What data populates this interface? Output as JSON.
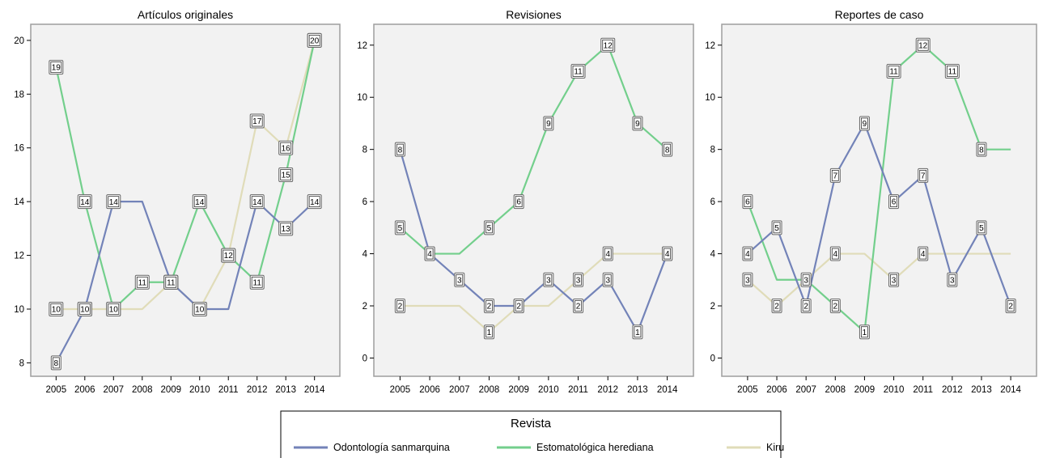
{
  "chart_data": [
    {
      "type": "line",
      "title": "Artículos originales",
      "categories": [
        "2005",
        "2006",
        "2007",
        "2008",
        "2009",
        "2010",
        "2011",
        "2012",
        "2013",
        "2014"
      ],
      "ylim": [
        7.5,
        20.6
      ],
      "yticks": [
        8,
        10,
        12,
        14,
        16,
        18,
        20
      ],
      "series": [
        {
          "name": "Odontología sanmarquina",
          "values": [
            8,
            10,
            14,
            14,
            11,
            10,
            10,
            14,
            13,
            14
          ],
          "labeled": [
            true,
            true,
            true,
            false,
            true,
            true,
            false,
            true,
            true,
            true
          ]
        },
        {
          "name": "Estomatológica herediana",
          "values": [
            19,
            14,
            10,
            11,
            11,
            14,
            12,
            11,
            15,
            20
          ],
          "labeled": [
            true,
            true,
            true,
            true,
            true,
            true,
            true,
            true,
            true,
            true
          ]
        },
        {
          "name": "Kiru",
          "values": [
            10,
            10,
            10,
            10,
            11,
            10,
            12,
            17,
            16,
            20
          ],
          "labeled": [
            true,
            true,
            true,
            false,
            true,
            true,
            true,
            true,
            true,
            true
          ]
        }
      ]
    },
    {
      "type": "line",
      "title": "Revisiones",
      "categories": [
        "2005",
        "2006",
        "2007",
        "2008",
        "2009",
        "2010",
        "2011",
        "2012",
        "2013",
        "2014"
      ],
      "ylim": [
        -0.7,
        12.8
      ],
      "yticks": [
        0,
        2,
        4,
        6,
        8,
        10,
        12
      ],
      "series": [
        {
          "name": "Odontología sanmarquina",
          "values": [
            8,
            4,
            3,
            2,
            2,
            3,
            2,
            3,
            1,
            4
          ],
          "labeled": [
            true,
            true,
            true,
            true,
            true,
            true,
            true,
            true,
            true,
            true
          ]
        },
        {
          "name": "Estomatológica herediana",
          "values": [
            5,
            4,
            4,
            5,
            6,
            9,
            11,
            12,
            9,
            8
          ],
          "labeled": [
            true,
            true,
            false,
            true,
            true,
            true,
            true,
            true,
            true,
            true
          ]
        },
        {
          "name": "Kiru",
          "values": [
            2,
            2,
            2,
            1,
            2,
            2,
            3,
            4,
            4,
            4
          ],
          "labeled": [
            true,
            false,
            false,
            true,
            true,
            false,
            true,
            true,
            false,
            true
          ]
        }
      ]
    },
    {
      "type": "line",
      "title": "Reportes de caso",
      "categories": [
        "2005",
        "2006",
        "2007",
        "2008",
        "2009",
        "2010",
        "2011",
        "2012",
        "2013",
        "2014"
      ],
      "ylim": [
        -0.7,
        12.8
      ],
      "yticks": [
        0,
        2,
        4,
        6,
        8,
        10,
        12
      ],
      "series": [
        {
          "name": "Odontología sanmarquina",
          "values": [
            4,
            5,
            2,
            7,
            9,
            6,
            7,
            3,
            5,
            2
          ],
          "labeled": [
            true,
            true,
            true,
            true,
            true,
            true,
            true,
            true,
            true,
            true
          ]
        },
        {
          "name": "Estomatológica herediana",
          "values": [
            6,
            3,
            3,
            2,
            1,
            11,
            12,
            11,
            8,
            8
          ],
          "labeled": [
            true,
            false,
            false,
            true,
            true,
            true,
            true,
            true,
            true,
            false
          ]
        },
        {
          "name": "Kiru",
          "values": [
            3,
            2,
            3,
            4,
            4,
            3,
            4,
            4,
            4,
            4
          ],
          "labeled": [
            true,
            true,
            true,
            true,
            false,
            true,
            true,
            false,
            false,
            false
          ]
        }
      ]
    }
  ],
  "legend": {
    "title": "Revista",
    "position": "bottom-center",
    "items": [
      {
        "label": "Odontología sanmarquina",
        "color": "#7383b8"
      },
      {
        "label": "Estomatológica herediana",
        "color": "#73cf8c"
      },
      {
        "label": "Kiru",
        "color": "#e0dcb9"
      }
    ]
  },
  "colors": {
    "plot_background": "#f2f2f2",
    "frame": "#9e9e9e",
    "series": [
      "#7383b8",
      "#73cf8c",
      "#e0dcb9"
    ]
  }
}
